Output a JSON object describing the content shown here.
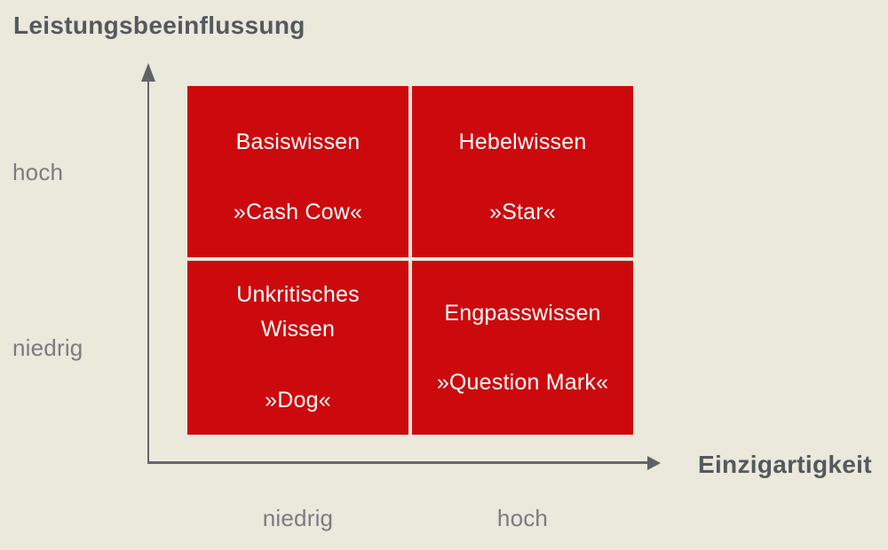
{
  "diagram": {
    "type": "2x2-portfolio-matrix",
    "y_axis": {
      "title": "Leistungsbeeinflussung",
      "high_label": "hoch",
      "low_label": "niedrig"
    },
    "x_axis": {
      "title": "Einzigartigkeit",
      "low_label": "niedrig",
      "high_label": "hoch"
    },
    "quadrants": {
      "tl": {
        "title": "Basiswissen",
        "subtitle": "»Cash Cow«"
      },
      "tr": {
        "title": "Hebelwissen",
        "subtitle": "»Star«"
      },
      "bl": {
        "title": "Unkritisches Wissen",
        "subtitle": "»Dog«"
      },
      "br": {
        "title": "Engpasswissen",
        "subtitle": "»Question Mark«"
      }
    },
    "colors": {
      "background": "#ebe8dc",
      "quadrant_fill": "#cc0a0d",
      "quadrant_text": "#ffffff",
      "axis_line": "#64676a",
      "axis_title_text": "#54595d",
      "tick_label_text": "#7c7c7e"
    }
  }
}
